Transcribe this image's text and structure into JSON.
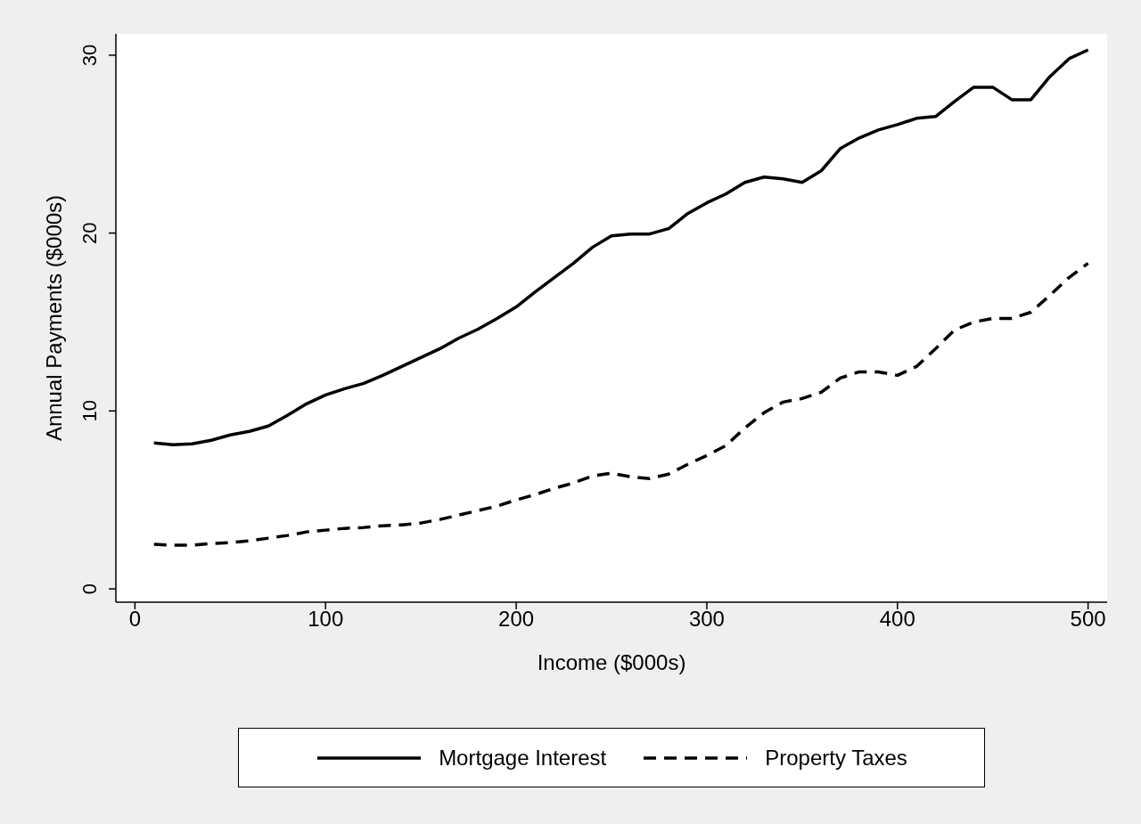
{
  "chart_data": {
    "type": "line",
    "xlabel": "Income ($000s)",
    "ylabel": "Annual Payments ($000s)",
    "x": [
      10,
      20,
      30,
      40,
      50,
      60,
      70,
      80,
      90,
      100,
      110,
      120,
      130,
      140,
      150,
      160,
      170,
      180,
      190,
      200,
      210,
      220,
      230,
      240,
      250,
      260,
      270,
      280,
      290,
      300,
      310,
      320,
      330,
      340,
      350,
      360,
      370,
      380,
      390,
      400,
      410,
      420,
      430,
      440,
      450,
      460,
      470,
      480,
      490,
      500
    ],
    "series": [
      {
        "name": "Mortgage Interest",
        "color": "#000000",
        "line_style": "solid",
        "values": [
          8.2,
          8.1,
          8.15,
          8.35,
          8.65,
          8.85,
          9.15,
          9.75,
          10.4,
          10.9,
          11.25,
          11.55,
          12.0,
          12.5,
          13.0,
          13.5,
          14.1,
          14.6,
          15.2,
          15.85,
          16.7,
          17.5,
          18.3,
          19.2,
          19.85,
          19.95,
          19.95,
          20.25,
          21.1,
          21.7,
          22.2,
          22.85,
          23.15,
          23.05,
          22.85,
          23.5,
          24.75,
          25.35,
          25.8,
          26.1,
          26.45,
          26.55,
          27.4,
          28.2,
          28.2,
          27.5,
          27.5,
          28.8,
          29.8,
          30.3
        ]
      },
      {
        "name": "Property Taxes",
        "color": "#000000",
        "line_style": "dashed",
        "values": [
          2.5,
          2.45,
          2.45,
          2.55,
          2.6,
          2.7,
          2.85,
          3.0,
          3.2,
          3.3,
          3.4,
          3.45,
          3.55,
          3.6,
          3.7,
          3.9,
          4.15,
          4.4,
          4.65,
          5.0,
          5.3,
          5.65,
          5.95,
          6.35,
          6.5,
          6.3,
          6.2,
          6.45,
          7.0,
          7.5,
          8.05,
          9.05,
          9.9,
          10.5,
          10.7,
          11.05,
          11.85,
          12.2,
          12.2,
          12.0,
          12.5,
          13.5,
          14.55,
          15.0,
          15.2,
          15.2,
          15.55,
          16.5,
          17.5,
          18.3
        ]
      }
    ],
    "xlim": [
      -10,
      510
    ],
    "ylim": [
      -0.75,
      31.2
    ],
    "xticks": [
      0,
      100,
      200,
      300,
      400,
      500
    ],
    "yticks": [
      0,
      10,
      20,
      30
    ],
    "grid": false,
    "legend": "bottom",
    "marker": "none"
  }
}
